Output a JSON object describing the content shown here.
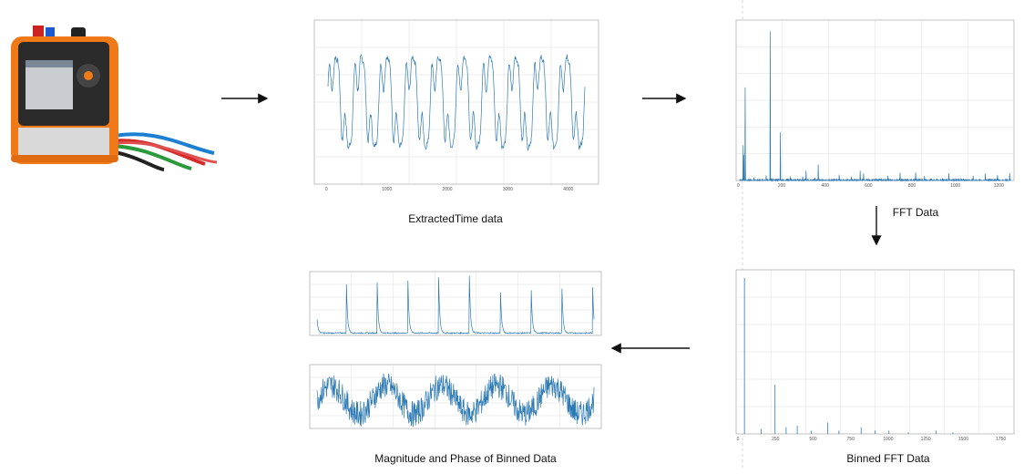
{
  "panels": [
    {
      "caption": "ExtractedTime data",
      "x_ticks": [
        "0",
        "1000",
        "2000",
        "3000",
        "4000"
      ]
    },
    {
      "caption": "FFT Data",
      "x_ticks": [
        "0",
        "200",
        "400",
        "600",
        "800",
        "1000",
        "1200"
      ]
    },
    {
      "caption": "Binned FFT Data",
      "x_ticks": [
        "0",
        "250",
        "500",
        "750",
        "1000",
        "1250",
        "1500",
        "1750"
      ]
    },
    {
      "caption": "Magnitude and Phase of Binned Data"
    }
  ]
}
